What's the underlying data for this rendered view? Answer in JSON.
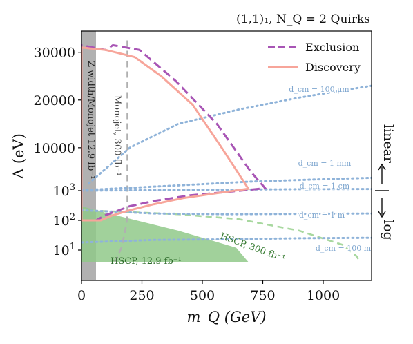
{
  "chart_data": {
    "type": "line",
    "title": "(1,1)₁, N_Q = 2 Quirks",
    "xlabel": "m_Q (GeV)",
    "ylabel": "Λ (eV)",
    "xlim": [
      0,
      1200
    ],
    "x_ticks": [
      "0",
      "250",
      "500",
      "750",
      "1000"
    ],
    "x_tick_values": [
      0,
      250,
      500,
      750,
      1000
    ],
    "y_scale": "log below 10^3 eV, linear above 10^3 eV",
    "y_ticks": [
      {
        "label": "10",
        "sup": "1",
        "value": 10
      },
      {
        "label": "10",
        "sup": "2",
        "value": 100
      },
      {
        "label": "10",
        "sup": "3",
        "value": 1000
      },
      {
        "label": "10000",
        "sup": "",
        "value": 10000
      },
      {
        "label": "20000",
        "sup": "",
        "value": 20000
      },
      {
        "label": "30000",
        "sup": "",
        "value": 30000
      }
    ],
    "side_labels": {
      "upper": "linear",
      "lower": "log"
    },
    "legend": {
      "position": "top-right",
      "entries": [
        {
          "name": "Exclusion",
          "color": "#a855b5",
          "dash": true
        },
        {
          "name": "Discovery",
          "color": "#f7a59a",
          "dash": false
        }
      ]
    },
    "series": [
      {
        "name": "Exclusion",
        "color": "#a855b5",
        "style": "dashed",
        "points": [
          [
            0,
            100
          ],
          [
            60,
            100
          ],
          [
            100,
            150
          ],
          [
            200,
            300
          ],
          [
            300,
            450
          ],
          [
            450,
            700
          ],
          [
            600,
            900
          ],
          [
            760,
            1500
          ],
          [
            700,
            5000
          ],
          [
            560,
            15000
          ],
          [
            390,
            24000
          ],
          [
            240,
            30500
          ],
          [
            130,
            31500
          ],
          [
            100,
            30500
          ],
          [
            0,
            31500
          ]
        ]
      },
      {
        "name": "Discovery",
        "color": "#f7a59a",
        "style": "solid",
        "points": [
          [
            0,
            100
          ],
          [
            80,
            100
          ],
          [
            120,
            140
          ],
          [
            200,
            220
          ],
          [
            300,
            350
          ],
          [
            420,
            560
          ],
          [
            550,
            800
          ],
          [
            690,
            1400
          ],
          [
            670,
            3000
          ],
          [
            580,
            10000
          ],
          [
            460,
            19000
          ],
          [
            330,
            25000
          ],
          [
            220,
            29000
          ],
          [
            100,
            30500
          ],
          [
            0,
            31000
          ]
        ]
      }
    ],
    "shaded_regions": [
      {
        "label": "Z width/Monojet 12.9 fb⁻¹",
        "color": "#a3a3a3",
        "x_range": [
          0,
          60
        ]
      },
      {
        "label": "HSCP, 12.9 fb⁻¹",
        "color": "#90c98a",
        "points": [
          [
            0,
            300
          ],
          [
            100,
            180
          ],
          [
            250,
            90
          ],
          [
            400,
            45
          ],
          [
            530,
            22
          ],
          [
            640,
            12
          ],
          [
            690,
            4
          ],
          [
            0,
            4
          ]
        ]
      }
    ],
    "curves": [
      {
        "label": "Monojet, 300 fb⁻¹",
        "color": "#b0b0b0",
        "style": "dashed",
        "points": [
          [
            190,
            32500
          ],
          [
            190,
            140
          ],
          [
            180,
            40
          ],
          [
            165,
            12
          ],
          [
            140,
            4
          ]
        ]
      },
      {
        "label": "HSCP, 300 fb⁻¹",
        "color": "#a8d89f",
        "style": "dashed",
        "points": [
          [
            0,
            220
          ],
          [
            200,
            190
          ],
          [
            400,
            160
          ],
          [
            650,
            110
          ],
          [
            900,
            45
          ],
          [
            1080,
            15
          ],
          [
            1140,
            6
          ],
          [
            1150,
            4
          ]
        ]
      }
    ],
    "contours": [
      {
        "label": "d_cm = 100 μm",
        "color": "#8fb3d9",
        "points": [
          [
            30,
            2500
          ],
          [
            200,
            10000
          ],
          [
            400,
            15000
          ],
          [
            650,
            18000
          ],
          [
            900,
            20500
          ],
          [
            1200,
            23000
          ]
        ]
      },
      {
        "label": "d_cm = 1 mm",
        "color": "#8fb3d9",
        "points": [
          [
            0,
            1100
          ],
          [
            200,
            1600
          ],
          [
            400,
            2100
          ],
          [
            700,
            2900
          ],
          [
            1000,
            3400
          ],
          [
            1200,
            3700
          ]
        ]
      },
      {
        "label": "d_cm = 1 cm",
        "color": "#8fb3d9",
        "points": [
          [
            0,
            1000
          ],
          [
            300,
            1100
          ],
          [
            600,
            1200
          ],
          [
            900,
            1300
          ],
          [
            1200,
            1350
          ]
        ]
      },
      {
        "label": "d_cm = 1 m",
        "color": "#8fb3d9",
        "points": [
          [
            0,
            220
          ],
          [
            300,
            170
          ],
          [
            600,
            160
          ],
          [
            900,
            165
          ],
          [
            1200,
            170
          ]
        ]
      },
      {
        "label": "d_cm = 100 m",
        "color": "#8fb3d9",
        "points": [
          [
            0,
            18
          ],
          [
            300,
            22
          ],
          [
            600,
            23
          ],
          [
            900,
            25
          ],
          [
            1200,
            26
          ]
        ]
      }
    ],
    "grid": false
  }
}
